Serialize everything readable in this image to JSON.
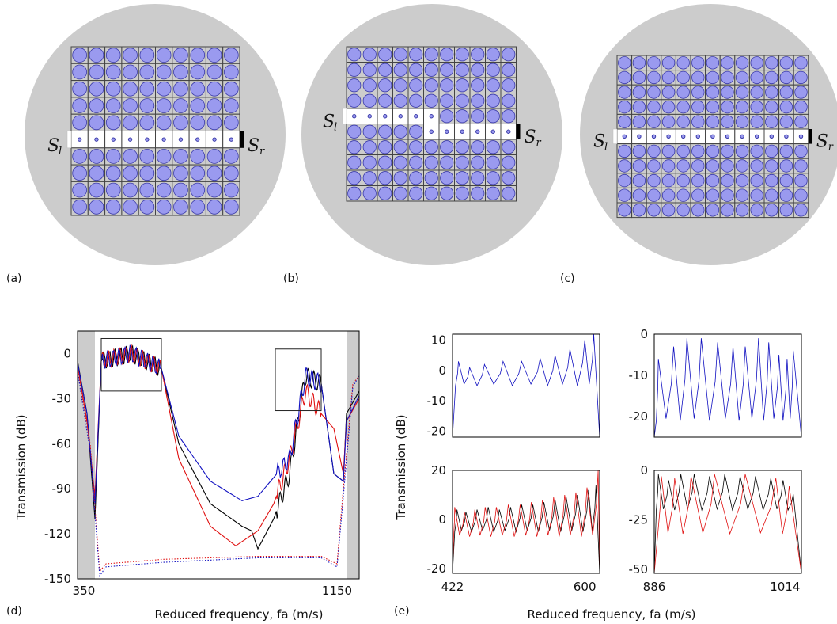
{
  "panels": {
    "a": {
      "label": "(a)",
      "cols": 10,
      "rows": 10,
      "guide_row": 5,
      "left_source": "S",
      "left_source_sub": "l",
      "right_source": "S",
      "right_source_sub": "r"
    },
    "b": {
      "label": "(b)",
      "cols": 11,
      "rows": 10,
      "guide_upper_row": 4,
      "guide_upper_cols": 6,
      "guide_lower_row": 5,
      "guide_lower_start_col": 5,
      "left_source": "S",
      "left_source_sub": "l",
      "right_source": "S",
      "right_source_sub": "r"
    },
    "c": {
      "label": "(c)",
      "cols": 13,
      "rows": 11,
      "guide_row": 5,
      "left_source": "S",
      "left_source_sub": "l",
      "right_source": "S",
      "right_source_sub": "r"
    },
    "d": {
      "label": "(d)"
    },
    "e": {
      "label": "(e)"
    }
  },
  "colors": {
    "disk": "#cccccc",
    "cell_fill": "#9a9aef",
    "cell_stroke": "#3a3aa8",
    "grid": "#444444",
    "black_series": "#000000",
    "red_series": "#e01010",
    "blue_series": "#1010c0",
    "band_shade": "#cccccc"
  },
  "chart_data": [
    {
      "id": "d",
      "type": "line",
      "xlabel": "Reduced frequency, fa (m/s)",
      "ylabel": "Transmission (dB)",
      "xlim": [
        330,
        1220
      ],
      "ylim": [
        -150,
        15
      ],
      "xticks": [
        350,
        1150
      ],
      "yticks": [
        0,
        -30,
        -60,
        -90,
        -120,
        -150
      ],
      "shaded_x_ranges": [
        [
          330,
          385
        ],
        [
          1180,
          1220
        ]
      ],
      "inset_boxes": [
        {
          "x": [
            405,
            595
          ],
          "y": [
            -25,
            10
          ]
        },
        {
          "x": [
            955,
            1100
          ],
          "y": [
            -38,
            3
          ]
        }
      ],
      "series": [
        {
          "color": "black",
          "style": "solid",
          "x": [
            330,
            360,
            385,
            405,
            500,
            595,
            650,
            750,
            850,
            880,
            900,
            950,
            1000,
            1050,
            1100,
            1140,
            1170,
            1180,
            1220
          ],
          "y": [
            -5,
            -40,
            -110,
            -5,
            0,
            -10,
            -60,
            -100,
            -115,
            -118,
            -130,
            -110,
            -80,
            -15,
            -20,
            -80,
            -85,
            -40,
            -25
          ]
        },
        {
          "color": "red",
          "style": "solid",
          "x": [
            330,
            360,
            385,
            405,
            500,
            595,
            650,
            750,
            830,
            900,
            950,
            1000,
            1050,
            1100,
            1140,
            1170,
            1180,
            1220
          ],
          "y": [
            -8,
            -45,
            -95,
            -5,
            0,
            -10,
            -70,
            -115,
            -128,
            -118,
            -100,
            -70,
            -25,
            -40,
            -50,
            -80,
            -45,
            -30
          ]
        },
        {
          "color": "blue",
          "style": "solid",
          "x": [
            330,
            360,
            385,
            405,
            500,
            595,
            650,
            750,
            850,
            900,
            1000,
            1050,
            1100,
            1140,
            1170,
            1180,
            1220
          ],
          "y": [
            -6,
            -40,
            -100,
            -5,
            0,
            -10,
            -55,
            -85,
            -98,
            -95,
            -70,
            -15,
            -20,
            -80,
            -85,
            -45,
            -28
          ]
        },
        {
          "color": "red",
          "style": "dotted",
          "x": [
            330,
            370,
            400,
            420,
            600,
            900,
            1100,
            1150,
            1170,
            1200,
            1220
          ],
          "y": [
            -10,
            -60,
            -145,
            -140,
            -137,
            -135,
            -135,
            -140,
            -90,
            -20,
            -15
          ]
        },
        {
          "color": "blue",
          "style": "dotted",
          "x": [
            330,
            370,
            400,
            420,
            600,
            900,
            1100,
            1150,
            1170,
            1200,
            1220
          ],
          "y": [
            -12,
            -65,
            -148,
            -142,
            -139,
            -136,
            -136,
            -142,
            -95,
            -22,
            -15
          ]
        }
      ]
    },
    {
      "id": "e-top-left",
      "type": "line",
      "xlim": [
        422,
        620
      ],
      "ylim": [
        -22,
        12
      ],
      "xticks": [],
      "yticks": [
        10,
        0,
        -10,
        -20
      ],
      "series": [
        {
          "color": "blue",
          "peaks_x": [
            430,
            445,
            465,
            490,
            515,
            540,
            560,
            580,
            600,
            612
          ],
          "peak_y": [
            3,
            1,
            2,
            3,
            3,
            4,
            5,
            7,
            10,
            12
          ],
          "trough_y": -5
        }
      ]
    },
    {
      "id": "e-top-right",
      "type": "line",
      "xlim": [
        886,
        1030
      ],
      "ylim": [
        -25,
        0
      ],
      "xticks": [],
      "yticks": [
        0,
        -10,
        -20
      ],
      "series": [
        {
          "color": "blue",
          "peaks_x": [
            890,
            905,
            918,
            932,
            948,
            963,
            975,
            988,
            998,
            1008,
            1016,
            1022
          ],
          "peak_y": [
            -6,
            -3,
            -1,
            -1,
            -2,
            -3,
            -3,
            -1,
            -2,
            -5,
            -6,
            -4
          ],
          "trough_y": -21
        }
      ]
    },
    {
      "id": "e-bottom-left",
      "type": "line",
      "xlim": [
        422,
        620
      ],
      "ylim": [
        -22,
        20
      ],
      "xticks": [
        422,
        600
      ],
      "yticks": [
        20,
        0,
        -20
      ],
      "xlabel": "Reduced frequency, fa (m/s)",
      "series": [
        {
          "color": "black",
          "peaks_x": [
            428,
            440,
            455,
            470,
            485,
            500,
            515,
            530,
            545,
            560,
            575,
            590,
            605,
            615
          ],
          "peak_y": [
            4,
            3,
            4,
            5,
            4,
            5,
            6,
            6,
            7,
            8,
            9,
            10,
            12,
            14
          ],
          "trough_y": -5
        },
        {
          "color": "red",
          "peaks_x": [
            425,
            438,
            452,
            466,
            481,
            497,
            513,
            528,
            543,
            558,
            573,
            588,
            603,
            618
          ],
          "peak_y": [
            5,
            3,
            4,
            5,
            5,
            6,
            6,
            7,
            8,
            9,
            10,
            11,
            13,
            20
          ],
          "trough_y": -7
        }
      ]
    },
    {
      "id": "e-bottom-right",
      "type": "line",
      "xlim": [
        886,
        1030
      ],
      "ylim": [
        -52,
        0
      ],
      "xticks": [
        886,
        1014
      ],
      "yticks": [
        0,
        -25,
        -50
      ],
      "series": [
        {
          "color": "black",
          "peaks_x": [
            890,
            900,
            912,
            925,
            940,
            955,
            970,
            985,
            1000,
            1012,
            1022
          ],
          "peak_y": [
            -2,
            -5,
            -2,
            -2,
            -3,
            -2,
            -3,
            -3,
            -4,
            -5,
            -12
          ],
          "trough_y": -20
        },
        {
          "color": "red",
          "peaks_x": [
            893,
            906,
            922,
            945,
            975,
            1005,
            1018
          ],
          "peak_y": [
            -3,
            -4,
            -3,
            -2,
            -2,
            -4,
            -8
          ],
          "trough_y": -32
        }
      ]
    }
  ],
  "shared_ylabel_e": "Transmission (dB)"
}
